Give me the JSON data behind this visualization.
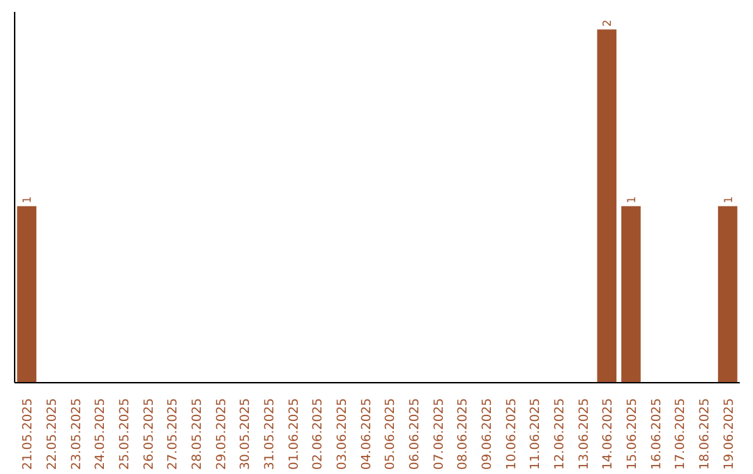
{
  "chart_data": {
    "type": "bar",
    "categories": [
      "21.05.2025",
      "22.05.2025",
      "23.05.2025",
      "24.05.2025",
      "25.05.2025",
      "26.05.2025",
      "27.05.2025",
      "28.05.2025",
      "29.05.2025",
      "30.05.2025",
      "31.05.2025",
      "01.06.2025",
      "02.06.2025",
      "03.06.2025",
      "04.06.2025",
      "05.06.2025",
      "06.06.2025",
      "07.06.2025",
      "08.06.2025",
      "09.06.2025",
      "10.06.2025",
      "11.06.2025",
      "12.06.2025",
      "13.06.2025",
      "14.06.2025",
      "15.06.2025",
      "16.06.2025",
      "17.06.2025",
      "18.06.2025",
      "19.06.2025"
    ],
    "values": [
      1,
      0,
      0,
      0,
      0,
      0,
      0,
      0,
      0,
      0,
      0,
      0,
      0,
      0,
      0,
      0,
      0,
      0,
      0,
      0,
      0,
      0,
      0,
      0,
      2,
      1,
      0,
      0,
      0,
      1
    ],
    "value_labels": [
      "1",
      null,
      null,
      null,
      null,
      null,
      null,
      null,
      null,
      null,
      null,
      null,
      null,
      null,
      null,
      null,
      null,
      null,
      null,
      null,
      null,
      null,
      null,
      null,
      "2",
      "1",
      null,
      null,
      null,
      "1"
    ],
    "color": "#a0522d",
    "grid": false
  }
}
